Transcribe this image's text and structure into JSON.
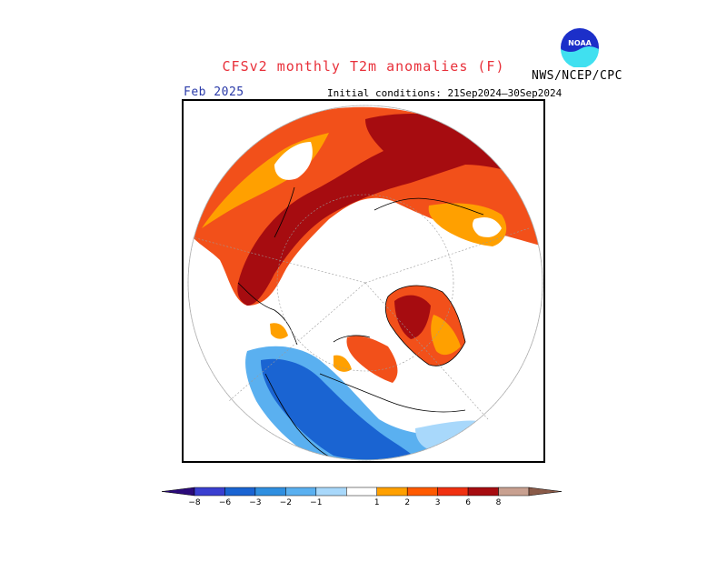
{
  "header": {
    "title": "CFSv2 monthly T2m anomalies (F)",
    "agency": "NWS/NCEP/CPC",
    "logo_text": "NOAA",
    "month": "Feb 2025",
    "initial_conditions": "Initial conditions: 21Sep2024–30Sep2024"
  },
  "map": {
    "projection": "north-polar-stereographic",
    "variable": "T2m anomaly",
    "units": "F"
  },
  "legend": {
    "tick_labels": [
      "−8",
      "−6",
      "−3",
      "−2",
      "−1",
      "1",
      "2",
      "3",
      "6",
      "8"
    ],
    "bins": [
      {
        "color": "#2b0a7a"
      },
      {
        "color": "#3a3fd0"
      },
      {
        "color": "#1a64d2"
      },
      {
        "color": "#2f8fe0"
      },
      {
        "color": "#5ab0f0"
      },
      {
        "color": "#a8d8fb"
      },
      {
        "color": "#ffffff"
      },
      {
        "color": "#ffa000"
      },
      {
        "color": "#ff5a00"
      },
      {
        "color": "#f03010"
      },
      {
        "color": "#a60c10"
      },
      {
        "color": "#c8a090"
      },
      {
        "color": "#8a5a48"
      }
    ]
  },
  "colors": {
    "warm_light": "#ffa000",
    "warm_mid": "#f2501a",
    "warm_dark": "#a60c10",
    "cool_light": "#a8d8fb",
    "cool_mid": "#5ab0f0",
    "cool_dark": "#1a64d2",
    "title": "#e8303a",
    "month": "#2a3aa8"
  }
}
